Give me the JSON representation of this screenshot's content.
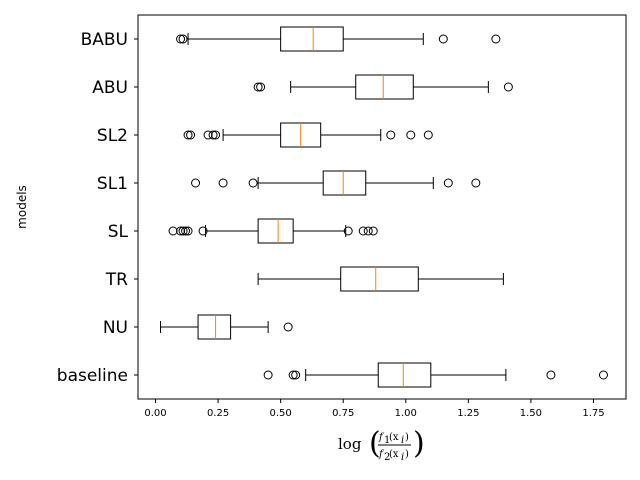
{
  "chart_data": {
    "type": "boxplot",
    "orientation": "horizontal",
    "ylabel": "models",
    "xlabel": {
      "prefix": "log",
      "numerator": "f",
      "numerator_sub": "1",
      "denominator": "f",
      "denominator_sub": "2",
      "arg": "(x",
      "arg_sub": "i",
      "arg_close": ")"
    },
    "xlim": [
      -0.07,
      1.88
    ],
    "xticks": [
      {
        "value": 0.0,
        "label": "0.00"
      },
      {
        "value": 0.25,
        "label": "0.25"
      },
      {
        "value": 0.5,
        "label": "0.50"
      },
      {
        "value": 0.75,
        "label": "0.75"
      },
      {
        "value": 1.0,
        "label": "1.00"
      },
      {
        "value": 1.25,
        "label": "1.25"
      },
      {
        "value": 1.5,
        "label": "1.50"
      },
      {
        "value": 1.75,
        "label": "1.75"
      }
    ],
    "colors": {
      "box": "#000000",
      "median": "#ff7f0e"
    },
    "series": [
      {
        "label": "BABU",
        "whislo": 0.13,
        "q1": 0.5,
        "median": 0.63,
        "q3": 0.75,
        "whishi": 1.07,
        "fliers": [
          0.1,
          0.11,
          1.15,
          1.36
        ]
      },
      {
        "label": "ABU",
        "whislo": 0.54,
        "q1": 0.8,
        "median": 0.91,
        "q3": 1.03,
        "whishi": 1.33,
        "fliers": [
          0.41,
          0.42,
          1.41
        ]
      },
      {
        "label": "SL2",
        "whislo": 0.27,
        "q1": 0.5,
        "median": 0.58,
        "q3": 0.66,
        "whishi": 0.9,
        "fliers": [
          0.13,
          0.14,
          0.21,
          0.23,
          0.24,
          0.94,
          1.02,
          1.09
        ]
      },
      {
        "label": "SL1",
        "whislo": 0.41,
        "q1": 0.67,
        "median": 0.75,
        "q3": 0.84,
        "whishi": 1.11,
        "fliers": [
          0.16,
          0.27,
          0.39,
          1.17,
          1.28
        ]
      },
      {
        "label": "SL",
        "whislo": 0.2,
        "q1": 0.41,
        "median": 0.49,
        "q3": 0.55,
        "whishi": 0.76,
        "fliers": [
          0.07,
          0.1,
          0.11,
          0.12,
          0.13,
          0.19,
          0.77,
          0.83,
          0.85,
          0.87
        ]
      },
      {
        "label": "TR",
        "whislo": 0.41,
        "q1": 0.74,
        "median": 0.88,
        "q3": 1.05,
        "whishi": 1.39,
        "fliers": []
      },
      {
        "label": "NU",
        "whislo": 0.02,
        "q1": 0.17,
        "median": 0.24,
        "q3": 0.3,
        "whishi": 0.45,
        "fliers": [
          0.53
        ]
      },
      {
        "label": "baseline",
        "whislo": 0.6,
        "q1": 0.89,
        "median": 0.99,
        "q3": 1.1,
        "whishi": 1.4,
        "fliers": [
          0.45,
          0.55,
          0.56,
          1.58,
          1.79
        ]
      }
    ]
  }
}
